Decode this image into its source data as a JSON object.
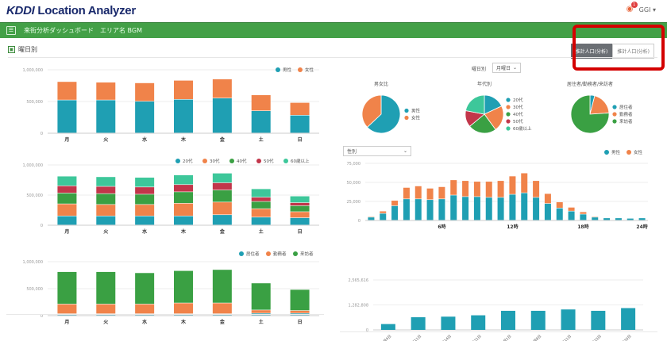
{
  "app": {
    "logo_brand": "KDDI",
    "logo_product": "Location Analyzer",
    "user_name": "GGI",
    "notification_count": "1"
  },
  "nav": {
    "breadcrumb": [
      "来街分析ダッシュボード",
      "エリア名 BGM"
    ]
  },
  "section": {
    "title": "曜日別",
    "toggle": [
      {
        "label": "推計人口(分析)",
        "active": true
      },
      {
        "label": "推計人口(分析)",
        "active": false
      }
    ]
  },
  "controls": {
    "day_select_label": "曜日別",
    "day_select_value": "月曜日",
    "hour_select_value": "性別"
  },
  "colors": {
    "teal": "#1f9fb3",
    "orange": "#f0834a",
    "green": "#3aa043",
    "red": "#c2364a",
    "mint": "#3dc79a",
    "header_green": "#43a047",
    "highlight_red": "#d40000"
  },
  "chart_data": [
    {
      "id": "weekday-gender",
      "type": "bar",
      "stacked": true,
      "categories": [
        "月",
        "火",
        "水",
        "木",
        "金",
        "土",
        "日"
      ],
      "series": [
        {
          "name": "男性",
          "color": "#1f9fb3",
          "values": [
            520000,
            520000,
            500000,
            530000,
            550000,
            350000,
            280000
          ]
        },
        {
          "name": "女性",
          "color": "#f0834a",
          "values": [
            290000,
            280000,
            290000,
            300000,
            300000,
            250000,
            200000
          ]
        }
      ],
      "yticks": [
        "0",
        "500,000",
        "1,000,000"
      ],
      "ylim": [
        0,
        1000000
      ],
      "legend": "top-right"
    },
    {
      "id": "weekday-age",
      "type": "bar",
      "stacked": true,
      "categories": [
        "月",
        "火",
        "水",
        "木",
        "金",
        "土",
        "日"
      ],
      "series": [
        {
          "name": "20代",
          "color": "#1f9fb3",
          "values": [
            150000,
            150000,
            150000,
            150000,
            170000,
            130000,
            120000
          ]
        },
        {
          "name": "30代",
          "color": "#f0834a",
          "values": [
            200000,
            190000,
            190000,
            210000,
            210000,
            140000,
            100000
          ]
        },
        {
          "name": "40代",
          "color": "#3aa043",
          "values": [
            180000,
            180000,
            170000,
            190000,
            200000,
            120000,
            100000
          ]
        },
        {
          "name": "50代",
          "color": "#c2364a",
          "values": [
            120000,
            120000,
            120000,
            120000,
            120000,
            70000,
            50000
          ]
        },
        {
          "name": "60歳以上",
          "color": "#3dc79a",
          "values": [
            160000,
            160000,
            160000,
            160000,
            160000,
            140000,
            110000
          ]
        }
      ],
      "yticks": [
        "0",
        "500,000",
        "1,000,000"
      ],
      "ylim": [
        0,
        1000000
      ],
      "legend": "top-right"
    },
    {
      "id": "weekday-residence",
      "type": "bar",
      "stacked": true,
      "categories": [
        "月",
        "火",
        "水",
        "木",
        "金",
        "土",
        "日"
      ],
      "series": [
        {
          "name": "居住者",
          "color": "#1f9fb3",
          "values": [
            30000,
            30000,
            30000,
            30000,
            30000,
            40000,
            40000
          ]
        },
        {
          "name": "勤務者",
          "color": "#f0834a",
          "values": [
            180000,
            180000,
            180000,
            200000,
            200000,
            60000,
            50000
          ]
        },
        {
          "name": "来訪者",
          "color": "#3aa043",
          "values": [
            600000,
            600000,
            580000,
            600000,
            620000,
            500000,
            390000
          ]
        }
      ],
      "yticks": [
        "0",
        "500,000",
        "1,000,000"
      ],
      "ylim": [
        0,
        1000000
      ],
      "legend": "top-right"
    },
    {
      "id": "pie-gender",
      "type": "pie",
      "title": "男女比",
      "labels": [
        "男性",
        "女性"
      ],
      "colors": [
        "#1f9fb3",
        "#f0834a"
      ],
      "values": [
        63,
        37
      ]
    },
    {
      "id": "pie-age",
      "type": "pie",
      "title": "年代別",
      "labels": [
        "20代",
        "30代",
        "40代",
        "50代",
        "60歳以上"
      ],
      "colors": [
        "#1f9fb3",
        "#f0834a",
        "#3aa043",
        "#c2364a",
        "#3dc79a"
      ],
      "values": [
        18,
        22,
        24,
        14,
        22
      ]
    },
    {
      "id": "pie-residence",
      "type": "pie",
      "title": "居住者/勤務者/来訪者",
      "labels": [
        "居住者",
        "勤務者",
        "来訪者"
      ],
      "colors": [
        "#1f9fb3",
        "#f0834a",
        "#3aa043"
      ],
      "values": [
        4,
        20,
        76
      ]
    },
    {
      "id": "hourly-gender",
      "type": "bar",
      "stacked": true,
      "categories": [
        "0時",
        "1時",
        "2時",
        "3時",
        "4時",
        "5時",
        "6時",
        "7時",
        "8時",
        "9時",
        "10時",
        "11時",
        "12時",
        "13時",
        "14時",
        "15時",
        "16時",
        "17時",
        "18時",
        "19時",
        "20時",
        "21時",
        "22時",
        "23時"
      ],
      "xtick_labels": [
        "6時",
        "12時",
        "18時",
        "24時"
      ],
      "series": [
        {
          "name": "男性",
          "color": "#1f9fb3",
          "values": [
            4000,
            9000,
            19000,
            28000,
            28000,
            27000,
            28000,
            33000,
            31000,
            31000,
            30000,
            30000,
            34000,
            36000,
            30000,
            22000,
            16000,
            12000,
            8000,
            4000,
            3000,
            3000,
            2500,
            3000
          ]
        },
        {
          "name": "女性",
          "color": "#f0834a",
          "values": [
            1000,
            3000,
            7000,
            15000,
            17000,
            15000,
            16000,
            20000,
            21000,
            20000,
            21000,
            22000,
            24000,
            26000,
            22000,
            13000,
            8000,
            5000,
            3000,
            1000,
            500,
            500,
            500,
            500
          ]
        }
      ],
      "yticks": [
        "0",
        "25,000",
        "50,000",
        "75,000"
      ],
      "ylim": [
        0,
        75000
      ],
      "legend": "top-right"
    },
    {
      "id": "daily-total",
      "type": "bar",
      "categories": [
        "2020年3月4日",
        "2020年3月11日",
        "2020年3月14日",
        "2020年3月21日",
        "2020年4月1日",
        "2020年4月8日",
        "2020年4月11日",
        "2020年4月15日",
        "2020年4月20日"
      ],
      "series": [
        {
          "name": "来街者数",
          "color": "#1f9fb3",
          "values": [
            300000,
            650000,
            680000,
            750000,
            980000,
            980000,
            1050000,
            980000,
            1120000
          ]
        }
      ],
      "yticks": [
        "0",
        "1,282,808",
        "2,565,616"
      ],
      "ylim": [
        0,
        2565616
      ]
    }
  ]
}
